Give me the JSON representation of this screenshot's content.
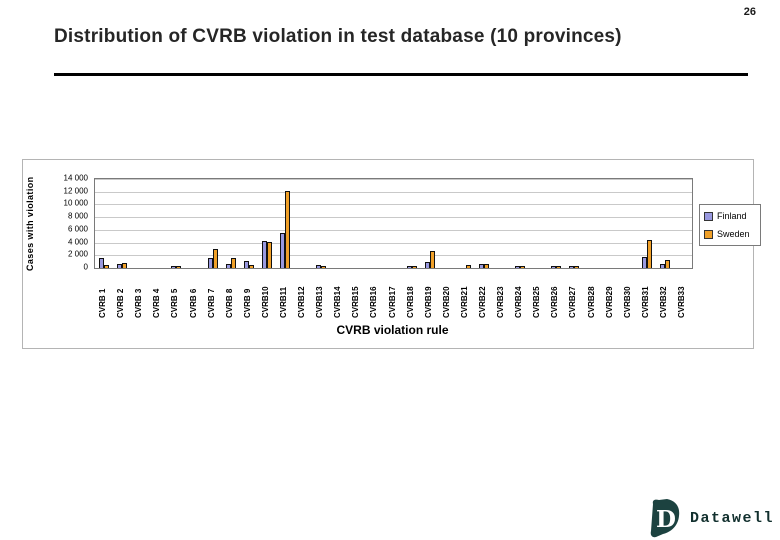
{
  "page": {
    "number": "26",
    "title": "Distribution of CVRB violation in test database (10 provinces)"
  },
  "chart_data": {
    "type": "bar",
    "title": "",
    "xlabel": "CVRB violation rule",
    "ylabel": "Cases with violation",
    "ylim": [
      0,
      14000
    ],
    "grid": true,
    "legend_position": "right",
    "ytick_labels_top_to_bottom": [
      "14 000",
      "12 000",
      "10 000",
      "8 000",
      "6 000",
      "4 000",
      "2 000",
      "0"
    ],
    "categories": [
      "CVRB 1",
      "CVRB 2",
      "CVRB 3",
      "CVRB 4",
      "CVRB 5",
      "CVRB 6",
      "CVRB 7",
      "CVRB 8",
      "CVRB 9",
      "CVRB10",
      "CVRB11",
      "CVRB12",
      "CVRB13",
      "CVRB14",
      "CVRB15",
      "CVRB16",
      "CVRB17",
      "CVRB18",
      "CVRB19",
      "CVRB20",
      "CVRB21",
      "CVRB22",
      "CVRB23",
      "CVRB24",
      "CVRB25",
      "CVRB26",
      "CVRB27",
      "CVRB28",
      "CVRB29",
      "CVRB30",
      "CVRB31",
      "CVRB32",
      "CVRB33"
    ],
    "series": [
      {
        "name": "Finland",
        "color": "#9999E0",
        "values": [
          1600,
          600,
          0,
          0,
          150,
          0,
          1500,
          650,
          1050,
          4300,
          5500,
          0,
          500,
          0,
          0,
          0,
          0,
          150,
          1000,
          0,
          0,
          700,
          0,
          100,
          0,
          100,
          100,
          0,
          0,
          0,
          1700,
          600,
          0
        ]
      },
      {
        "name": "Sweden",
        "color": "#F0A028",
        "values": [
          400,
          800,
          0,
          0,
          100,
          0,
          3000,
          1600,
          400,
          4150,
          12100,
          0,
          150,
          0,
          0,
          0,
          0,
          100,
          2700,
          0,
          400,
          700,
          0,
          100,
          0,
          100,
          100,
          0,
          0,
          0,
          4400,
          1250,
          0
        ]
      }
    ]
  },
  "logo": {
    "mark_letter": "D",
    "text": "Datawell"
  }
}
